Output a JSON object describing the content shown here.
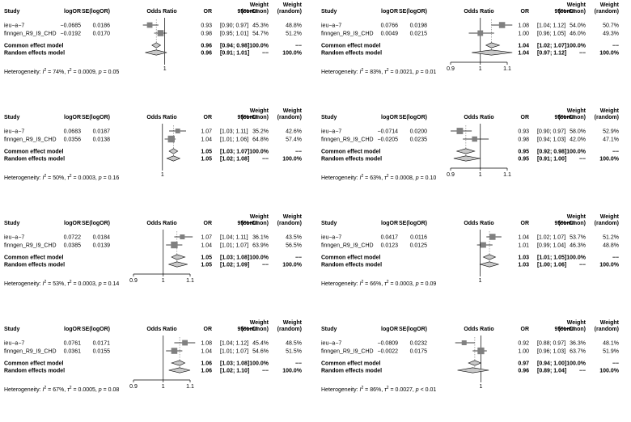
{
  "chart_data": [
    {
      "type": "forest",
      "headers": {
        "study": "Study",
        "te": "logOR",
        "se": "SE(logOR)",
        "plot": "Odds Ratio",
        "or": "OR",
        "ci": "95%−CI",
        "wc1": "Weight",
        "wc2": "(common)",
        "wr1": "Weight",
        "wr2": "(random)"
      },
      "studies": [
        {
          "name": "ieu−a−7",
          "te": "−0.0685",
          "se": "0.0186",
          "or": 0.93,
          "lo": 0.9,
          "hi": 0.97,
          "or_text": "0.93",
          "ci_text": "[0.90; 0.97]",
          "w_common": "45.3%",
          "w_random": "48.8%",
          "w": 45.3
        },
        {
          "name": "finngen_R9_I9_CHD",
          "te": "−0.0192",
          "se": "0.0170",
          "or": 0.98,
          "lo": 0.95,
          "hi": 1.01,
          "or_text": "0.98",
          "ci_text": "[0.95; 1.01]",
          "w_common": "54.7%",
          "w_random": "51.2%",
          "w": 54.7
        }
      ],
      "common": {
        "label": "Common effect model",
        "or": 0.96,
        "lo": 0.94,
        "hi": 0.98,
        "or_text": "0.96",
        "ci_text": "[0.94; 0.98]",
        "w_common": "100.0%",
        "w_random": "−−"
      },
      "random": {
        "label": "Random effects model",
        "or": 0.96,
        "lo": 0.91,
        "hi": 1.01,
        "or_text": "0.96",
        "ci_text": "[0.91; 1.01]",
        "w_common": "−−",
        "w_random": "100.0%"
      },
      "heterogeneity": {
        "prefix": "Heterogeneity: ",
        "i2_label": "I",
        "i2_value": " = 74%, ",
        "tau_label": "τ",
        "tau_value": " = 0.0009, ",
        "p_label": "p",
        "p_value": " = 0.05"
      },
      "xlim": [
        0.86,
        1.13
      ],
      "ticks": [
        {
          "value": 1,
          "label": "1"
        }
      ]
    },
    {
      "type": "forest",
      "headers": {
        "study": "Study",
        "te": "logOR",
        "se": "SE(logOR)",
        "plot": "Odds Ratio",
        "or": "OR",
        "ci": "95%−CI",
        "wc1": "Weight",
        "wc2": "(common)",
        "wr1": "Weight",
        "wr2": "(random)"
      },
      "studies": [
        {
          "name": "ieu−a−7",
          "te": "0.0766",
          "se": "0.0198",
          "or": 1.08,
          "lo": 1.04,
          "hi": 1.12,
          "or_text": "1.08",
          "ci_text": "[1.04; 1.12]",
          "w_common": "54.0%",
          "w_random": "50.7%",
          "w": 54.0
        },
        {
          "name": "finngen_R9_I9_CHD",
          "te": "0.0049",
          "se": "0.0215",
          "or": 1.0,
          "lo": 0.96,
          "hi": 1.05,
          "or_text": "1.00",
          "ci_text": "[0.96; 1.05]",
          "w_common": "46.0%",
          "w_random": "49.3%",
          "w": 46.0
        }
      ],
      "common": {
        "label": "Common effect model",
        "or": 1.04,
        "lo": 1.02,
        "hi": 1.07,
        "or_text": "1.04",
        "ci_text": "[1.02; 1.07]",
        "w_common": "100.0%",
        "w_random": "−−"
      },
      "random": {
        "label": "Random effects model",
        "or": 1.04,
        "lo": 0.97,
        "hi": 1.12,
        "or_text": "1.04",
        "ci_text": "[0.97; 1.12]",
        "w_common": "−−",
        "w_random": "100.0%"
      },
      "heterogeneity": {
        "prefix": "Heterogeneity: ",
        "i2_label": "I",
        "i2_value": " = 83%, ",
        "tau_label": "τ",
        "tau_value": " = 0.0021, ",
        "p_label": "p",
        "p_value": " = 0.01"
      },
      "xlim": [
        0.9,
        1.1
      ],
      "ticks": [
        {
          "value": 0.9,
          "label": "0.9"
        },
        {
          "value": 1,
          "label": "1"
        },
        {
          "value": 1.1,
          "label": "1.1"
        }
      ]
    },
    {
      "type": "forest",
      "headers": {
        "study": "Study",
        "te": "logOR",
        "se": "SE(logOR)",
        "plot": "Odds Ratio",
        "or": "OR",
        "ci": "95%−CI",
        "wc1": "Weight",
        "wc2": "(common)",
        "wr1": "Weight",
        "wr2": "(random)"
      },
      "studies": [
        {
          "name": "ieu−a−7",
          "te": "0.0683",
          "se": "0.0187",
          "or": 1.07,
          "lo": 1.03,
          "hi": 1.11,
          "or_text": "1.07",
          "ci_text": "[1.03; 1.11]",
          "w_common": "35.2%",
          "w_random": "42.6%",
          "w": 35.2
        },
        {
          "name": "finngen_R9_I9_CHD",
          "te": "0.0356",
          "se": "0.0138",
          "or": 1.04,
          "lo": 1.01,
          "hi": 1.06,
          "or_text": "1.04",
          "ci_text": "[1.01; 1.06]",
          "w_common": "64.8%",
          "w_random": "57.4%",
          "w": 64.8
        }
      ],
      "common": {
        "label": "Common effect model",
        "or": 1.05,
        "lo": 1.03,
        "hi": 1.07,
        "or_text": "1.05",
        "ci_text": "[1.03; 1.07]",
        "w_common": "100.0%",
        "w_random": "−−"
      },
      "random": {
        "label": "Random effects model",
        "or": 1.05,
        "lo": 1.02,
        "hi": 1.08,
        "or_text": "1.05",
        "ci_text": "[1.02; 1.08]",
        "w_common": "−−",
        "w_random": "100.0%"
      },
      "heterogeneity": {
        "prefix": "Heterogeneity: ",
        "i2_label": "I",
        "i2_value": " = 50%, ",
        "tau_label": "τ",
        "tau_value": " = 0.0003, ",
        "p_label": "p",
        "p_value": " = 0.16"
      },
      "xlim": [
        0.88,
        1.13
      ],
      "ticks": [
        {
          "value": 1,
          "label": "1"
        }
      ]
    },
    {
      "type": "forest",
      "headers": {
        "study": "Study",
        "te": "logOR",
        "se": "SE(logOR)",
        "plot": "Odds Ratio",
        "or": "OR",
        "ci": "95%−CI",
        "wc1": "Weight",
        "wc2": "(common)",
        "wr1": "Weight",
        "wr2": "(random)"
      },
      "studies": [
        {
          "name": "ieu−a−7",
          "te": "−0.0714",
          "se": "0.0200",
          "or": 0.93,
          "lo": 0.9,
          "hi": 0.97,
          "or_text": "0.93",
          "ci_text": "[0.90; 0.97]",
          "w_common": "58.0%",
          "w_random": "52.9%",
          "w": 58.0
        },
        {
          "name": "finngen_R9_I9_CHD",
          "te": "−0.0205",
          "se": "0.0235",
          "or": 0.98,
          "lo": 0.94,
          "hi": 1.03,
          "or_text": "0.98",
          "ci_text": "[0.94; 1.03]",
          "w_common": "42.0%",
          "w_random": "47.1%",
          "w": 42.0
        }
      ],
      "common": {
        "label": "Common effect model",
        "or": 0.95,
        "lo": 0.92,
        "hi": 0.98,
        "or_text": "0.95",
        "ci_text": "[0.92; 0.98]",
        "w_common": "100.0%",
        "w_random": "−−"
      },
      "random": {
        "label": "Random effects model",
        "or": 0.95,
        "lo": 0.91,
        "hi": 1.0,
        "or_text": "0.95",
        "ci_text": "[0.91; 1.00]",
        "w_common": "−−",
        "w_random": "100.0%"
      },
      "heterogeneity": {
        "prefix": "Heterogeneity: ",
        "i2_label": "I",
        "i2_value": " = 63%, ",
        "tau_label": "τ",
        "tau_value": " = 0.0008, ",
        "p_label": "p",
        "p_value": " = 0.10"
      },
      "xlim": [
        0.9,
        1.1
      ],
      "ticks": [
        {
          "value": 0.9,
          "label": "0.9"
        },
        {
          "value": 1,
          "label": "1"
        },
        {
          "value": 1.1,
          "label": "1.1"
        }
      ]
    },
    {
      "type": "forest",
      "headers": {
        "study": "Study",
        "te": "logOR",
        "se": "SE(logOR)",
        "plot": "Odds Ratio",
        "or": "OR",
        "ci": "95%−CI",
        "wc1": "Weight",
        "wc2": "(common)",
        "wr1": "Weight",
        "wr2": "(random)"
      },
      "studies": [
        {
          "name": "ieu−a−7",
          "te": "0.0722",
          "se": "0.0184",
          "or": 1.07,
          "lo": 1.04,
          "hi": 1.11,
          "or_text": "1.07",
          "ci_text": "[1.04; 1.11]",
          "w_common": "36.1%",
          "w_random": "43.5%",
          "w": 36.1
        },
        {
          "name": "finngen_R9_I9_CHD",
          "te": "0.0385",
          "se": "0.0139",
          "or": 1.04,
          "lo": 1.01,
          "hi": 1.07,
          "or_text": "1.04",
          "ci_text": "[1.01; 1.07]",
          "w_common": "63.9%",
          "w_random": "56.5%",
          "w": 63.9
        }
      ],
      "common": {
        "label": "Common effect model",
        "or": 1.05,
        "lo": 1.03,
        "hi": 1.08,
        "or_text": "1.05",
        "ci_text": "[1.03; 1.08]",
        "w_common": "100.0%",
        "w_random": "−−"
      },
      "random": {
        "label": "Random effects model",
        "or": 1.05,
        "lo": 1.02,
        "hi": 1.09,
        "or_text": "1.05",
        "ci_text": "[1.02; 1.09]",
        "w_common": "−−",
        "w_random": "100.0%"
      },
      "heterogeneity": {
        "prefix": "Heterogeneity: ",
        "i2_label": "I",
        "i2_value": " = 53%, ",
        "tau_label": "τ",
        "tau_value": " = 0.0003, ",
        "p_label": "p",
        "p_value": " = 0.14"
      },
      "xlim": [
        0.9,
        1.1
      ],
      "ticks": [
        {
          "value": 0.9,
          "label": "0.9"
        },
        {
          "value": 1,
          "label": "1"
        },
        {
          "value": 1.1,
          "label": "1.1"
        }
      ]
    },
    {
      "type": "forest",
      "headers": {
        "study": "Study",
        "te": "logOR",
        "se": "SE(logOR)",
        "plot": "Odds Ratio",
        "or": "OR",
        "ci": "95%−CI",
        "wc1": "Weight",
        "wc2": "(common)",
        "wr1": "Weight",
        "wr2": "(random)"
      },
      "studies": [
        {
          "name": "ieu−a−7",
          "te": "0.0417",
          "se": "0.0116",
          "or": 1.04,
          "lo": 1.02,
          "hi": 1.07,
          "or_text": "1.04",
          "ci_text": "[1.02; 1.07]",
          "w_common": "53.7%",
          "w_random": "51.2%",
          "w": 53.7
        },
        {
          "name": "finngen_R9_I9_CHD",
          "te": "0.0123",
          "se": "0.0125",
          "or": 1.01,
          "lo": 0.99,
          "hi": 1.04,
          "or_text": "1.01",
          "ci_text": "[0.99; 1.04]",
          "w_common": "46.3%",
          "w_random": "48.8%",
          "w": 46.3
        }
      ],
      "common": {
        "label": "Common effect model",
        "or": 1.03,
        "lo": 1.01,
        "hi": 1.05,
        "or_text": "1.03",
        "ci_text": "[1.01; 1.05]",
        "w_common": "100.0%",
        "w_random": "−−"
      },
      "random": {
        "label": "Random effects model",
        "or": 1.03,
        "lo": 1.0,
        "hi": 1.06,
        "or_text": "1.03",
        "ci_text": "[1.00; 1.06]",
        "w_common": "−−",
        "w_random": "100.0%"
      },
      "heterogeneity": {
        "prefix": "Heterogeneity: ",
        "i2_label": "I",
        "i2_value": " = 66%, ",
        "tau_label": "τ",
        "tau_value": " = 0.0003, ",
        "p_label": "p",
        "p_value": " = 0.09"
      },
      "xlim": [
        0.91,
        1.09
      ],
      "ticks": [
        {
          "value": 1,
          "label": "1"
        }
      ]
    },
    {
      "type": "forest",
      "headers": {
        "study": "Study",
        "te": "logOR",
        "se": "SE(logOR)",
        "plot": "Odds Ratio",
        "or": "OR",
        "ci": "95%−CI",
        "wc1": "Weight",
        "wc2": "(common)",
        "wr1": "Weight",
        "wr2": "(random)"
      },
      "studies": [
        {
          "name": "ieu−a−7",
          "te": "0.0761",
          "se": "0.0171",
          "or": 1.08,
          "lo": 1.04,
          "hi": 1.12,
          "or_text": "1.08",
          "ci_text": "[1.04; 1.12]",
          "w_common": "45.4%",
          "w_random": "48.5%",
          "w": 45.4
        },
        {
          "name": "finngen_R9_I9_CHD",
          "te": "0.0361",
          "se": "0.0155",
          "or": 1.04,
          "lo": 1.01,
          "hi": 1.07,
          "or_text": "1.04",
          "ci_text": "[1.01; 1.07]",
          "w_common": "54.6%",
          "w_random": "51.5%",
          "w": 54.6
        }
      ],
      "common": {
        "label": "Common effect model",
        "or": 1.06,
        "lo": 1.03,
        "hi": 1.08,
        "or_text": "1.06",
        "ci_text": "[1.03; 1.08]",
        "w_common": "100.0%",
        "w_random": "−−"
      },
      "random": {
        "label": "Random effects model",
        "or": 1.06,
        "lo": 1.02,
        "hi": 1.1,
        "or_text": "1.06",
        "ci_text": "[1.02; 1.10]",
        "w_common": "−−",
        "w_random": "100.0%"
      },
      "heterogeneity": {
        "prefix": "Heterogeneity: ",
        "i2_label": "I",
        "i2_value": " = 67%, ",
        "tau_label": "τ",
        "tau_value": " = 0.0005, ",
        "p_label": "p",
        "p_value": " = 0.08"
      },
      "xlim": [
        0.9,
        1.1
      ],
      "ticks": [
        {
          "value": 0.9,
          "label": "0.9"
        },
        {
          "value": 1,
          "label": "1"
        },
        {
          "value": 1.1,
          "label": "1.1"
        }
      ]
    },
    {
      "type": "forest",
      "headers": {
        "study": "Study",
        "te": "logOR",
        "se": "SE(logOR)",
        "plot": "Odds Ratio",
        "or": "OR",
        "ci": "95%−CI",
        "wc1": "Weight",
        "wc2": "(common)",
        "wr1": "Weight",
        "wr2": "(random)"
      },
      "studies": [
        {
          "name": "ieu−a−7",
          "te": "−0.0809",
          "se": "0.0232",
          "or": 0.92,
          "lo": 0.88,
          "hi": 0.97,
          "or_text": "0.92",
          "ci_text": "[0.88; 0.97]",
          "w_common": "36.3%",
          "w_random": "48.1%",
          "w": 36.3
        },
        {
          "name": "finngen_R9_I9_CHD",
          "te": "−0.0022",
          "se": "0.0175",
          "or": 1.0,
          "lo": 0.96,
          "hi": 1.03,
          "or_text": "1.00",
          "ci_text": "[0.96; 1.03]",
          "w_common": "63.7%",
          "w_random": "51.9%",
          "w": 63.7
        }
      ],
      "common": {
        "label": "Common effect model",
        "or": 0.97,
        "lo": 0.94,
        "hi": 1.0,
        "or_text": "0.97",
        "ci_text": "[0.94; 1.00]",
        "w_common": "100.0%",
        "w_random": "−−"
      },
      "random": {
        "label": "Random effects model",
        "or": 0.96,
        "lo": 0.89,
        "hi": 1.04,
        "or_text": "0.96",
        "ci_text": "[0.89; 1.04]",
        "w_common": "−−",
        "w_random": "100.0%"
      },
      "heterogeneity": {
        "prefix": "Heterogeneity: ",
        "i2_label": "I",
        "i2_value": " = 86%, ",
        "tau_label": "τ",
        "tau_value": " = 0.0027, ",
        "p_label": "p",
        "p_value": " < 0.01"
      },
      "xlim": [
        0.86,
        1.14
      ],
      "ticks": [
        {
          "value": 1,
          "label": "1"
        }
      ]
    }
  ]
}
